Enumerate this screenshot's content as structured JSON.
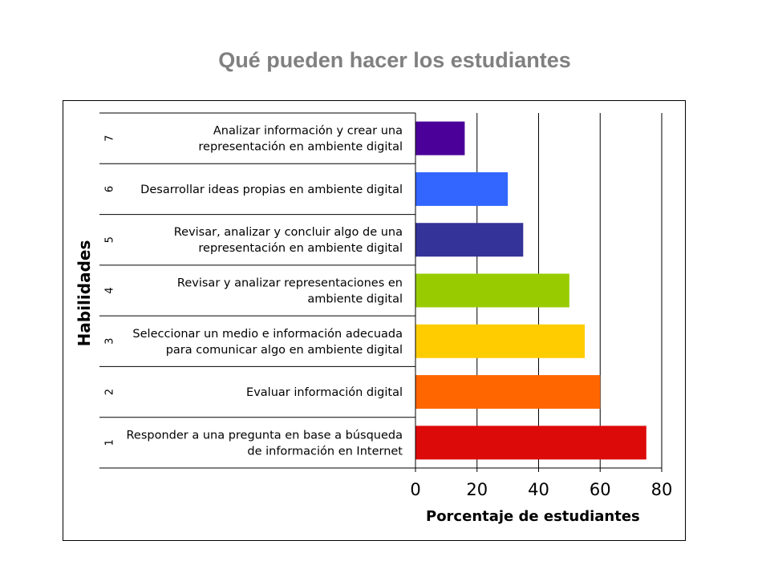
{
  "page": {
    "title": "Qué pueden hacer los estudiantes"
  },
  "chart_data": {
    "type": "bar",
    "orientation": "horizontal",
    "title": "Qué pueden hacer los estudiantes",
    "xlabel": "Porcentaje de estudiantes",
    "ylabel": "Habilidades",
    "xlim": [
      0,
      80
    ],
    "xticks": [
      0,
      20,
      40,
      60,
      80
    ],
    "grid": true,
    "legend": "none",
    "categories": [
      {
        "num": "1",
        "label": [
          "Responder a una pregunta en base a búsqueda",
          "de información en Internet"
        ],
        "value": 75,
        "color": "#DD0A0A"
      },
      {
        "num": "2",
        "label": [
          "Evaluar información digital"
        ],
        "value": 60,
        "color": "#FF6600"
      },
      {
        "num": "3",
        "label": [
          "Seleccionar un medio e información adecuada",
          "para comunicar algo en ambiente digital"
        ],
        "value": 55,
        "color": "#FFCC00"
      },
      {
        "num": "4",
        "label": [
          "Revisar y analizar representaciones en",
          "ambiente digital"
        ],
        "value": 50,
        "color": "#99CC00"
      },
      {
        "num": "5",
        "label": [
          "Revisar, analizar y concluir algo de una",
          "representación en ambiente digital"
        ],
        "value": 35,
        "color": "#333399"
      },
      {
        "num": "6",
        "label": [
          "Desarrollar ideas propias en ambiente digital"
        ],
        "value": 30,
        "color": "#3366FF"
      },
      {
        "num": "7",
        "label": [
          "Analizar información y crear una",
          "representación en ambiente digital"
        ],
        "value": 16,
        "color": "#4B0099"
      }
    ]
  }
}
